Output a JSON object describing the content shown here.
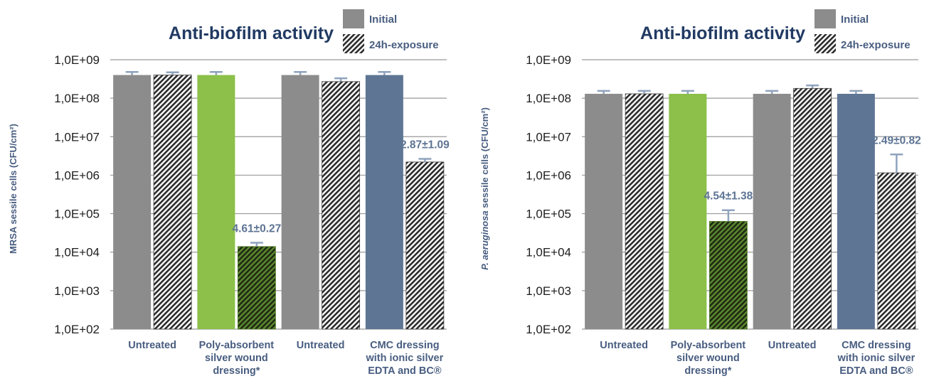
{
  "chart_data": [
    {
      "type": "bar",
      "title": "Anti-biofilm activity",
      "ylabel": "MRSA sessile cells (CFU/cm²)",
      "yscale": "log",
      "ylim": [
        100,
        1000000000
      ],
      "y_tick_labels": [
        "1,0E+09",
        "1,0E+08",
        "1,0E+07",
        "1,0E+06",
        "1,0E+05",
        "1,0E+04",
        "1,0E+03",
        "1,0E+02"
      ],
      "legend_position": "top-right",
      "legend": [
        "Initial",
        "24h-exposure"
      ],
      "grid": true,
      "categories": [
        [
          "Untreated"
        ],
        [
          "Poly-absorbent",
          "silver wound",
          "dressing*"
        ],
        [
          "Untreated"
        ],
        [
          "CMC dressing",
          "with ionic silver",
          "EDTA and BC®"
        ]
      ],
      "series": [
        {
          "name": "Initial",
          "values": [
            400000000,
            400000000,
            400000000,
            400000000
          ],
          "error": [
            80000000,
            80000000,
            80000000,
            80000000
          ]
        },
        {
          "name": "24h-exposure",
          "values": [
            400000000,
            14000,
            270000000,
            2200000
          ],
          "error": [
            70000000,
            3500,
            60000000,
            450000
          ]
        }
      ],
      "bar_colors": [
        "#8c8c8c",
        "#8cc04a",
        "#8c8c8c",
        "#5e7594"
      ],
      "annotations": [
        {
          "category_index": 1,
          "text": "4.61±0.27"
        },
        {
          "category_index": 3,
          "text": "2.87±1.09"
        }
      ]
    },
    {
      "type": "bar",
      "title": "Anti-biofilm activity",
      "ylabel_italic": "P. aeruginosa",
      "ylabel": " sessile cells (CFU/cm²)",
      "yscale": "log",
      "ylim": [
        100,
        1000000000
      ],
      "y_tick_labels": [
        "1,0E+09",
        "1,0E+08",
        "1,0E+07",
        "1,0E+06",
        "1,0E+05",
        "1,0E+04",
        "1,0E+03",
        "1,0E+02"
      ],
      "legend_position": "top-right",
      "legend": [
        "Initial",
        "24h-exposure"
      ],
      "grid": true,
      "categories": [
        [
          "Untreated"
        ],
        [
          "Poly-absorbent",
          "silver wound",
          "dressing*"
        ],
        [
          "Untreated"
        ],
        [
          "CMC dressing",
          "with ionic silver",
          "EDTA and BC®"
        ]
      ],
      "series": [
        {
          "name": "Initial",
          "values": [
            130000000,
            130000000,
            130000000,
            130000000
          ],
          "error": [
            25000000,
            25000000,
            25000000,
            25000000
          ]
        },
        {
          "name": "24h-exposure",
          "values": [
            130000000,
            63000,
            180000000,
            1150000
          ],
          "error": [
            25000000,
            60000,
            35000000,
            2300000
          ]
        }
      ],
      "bar_colors": [
        "#8c8c8c",
        "#8cc04a",
        "#8c8c8c",
        "#5e7594"
      ],
      "annotations": [
        {
          "category_index": 1,
          "text": "4.54±1.38"
        },
        {
          "category_index": 3,
          "text": "2.49±0.82"
        }
      ]
    }
  ]
}
